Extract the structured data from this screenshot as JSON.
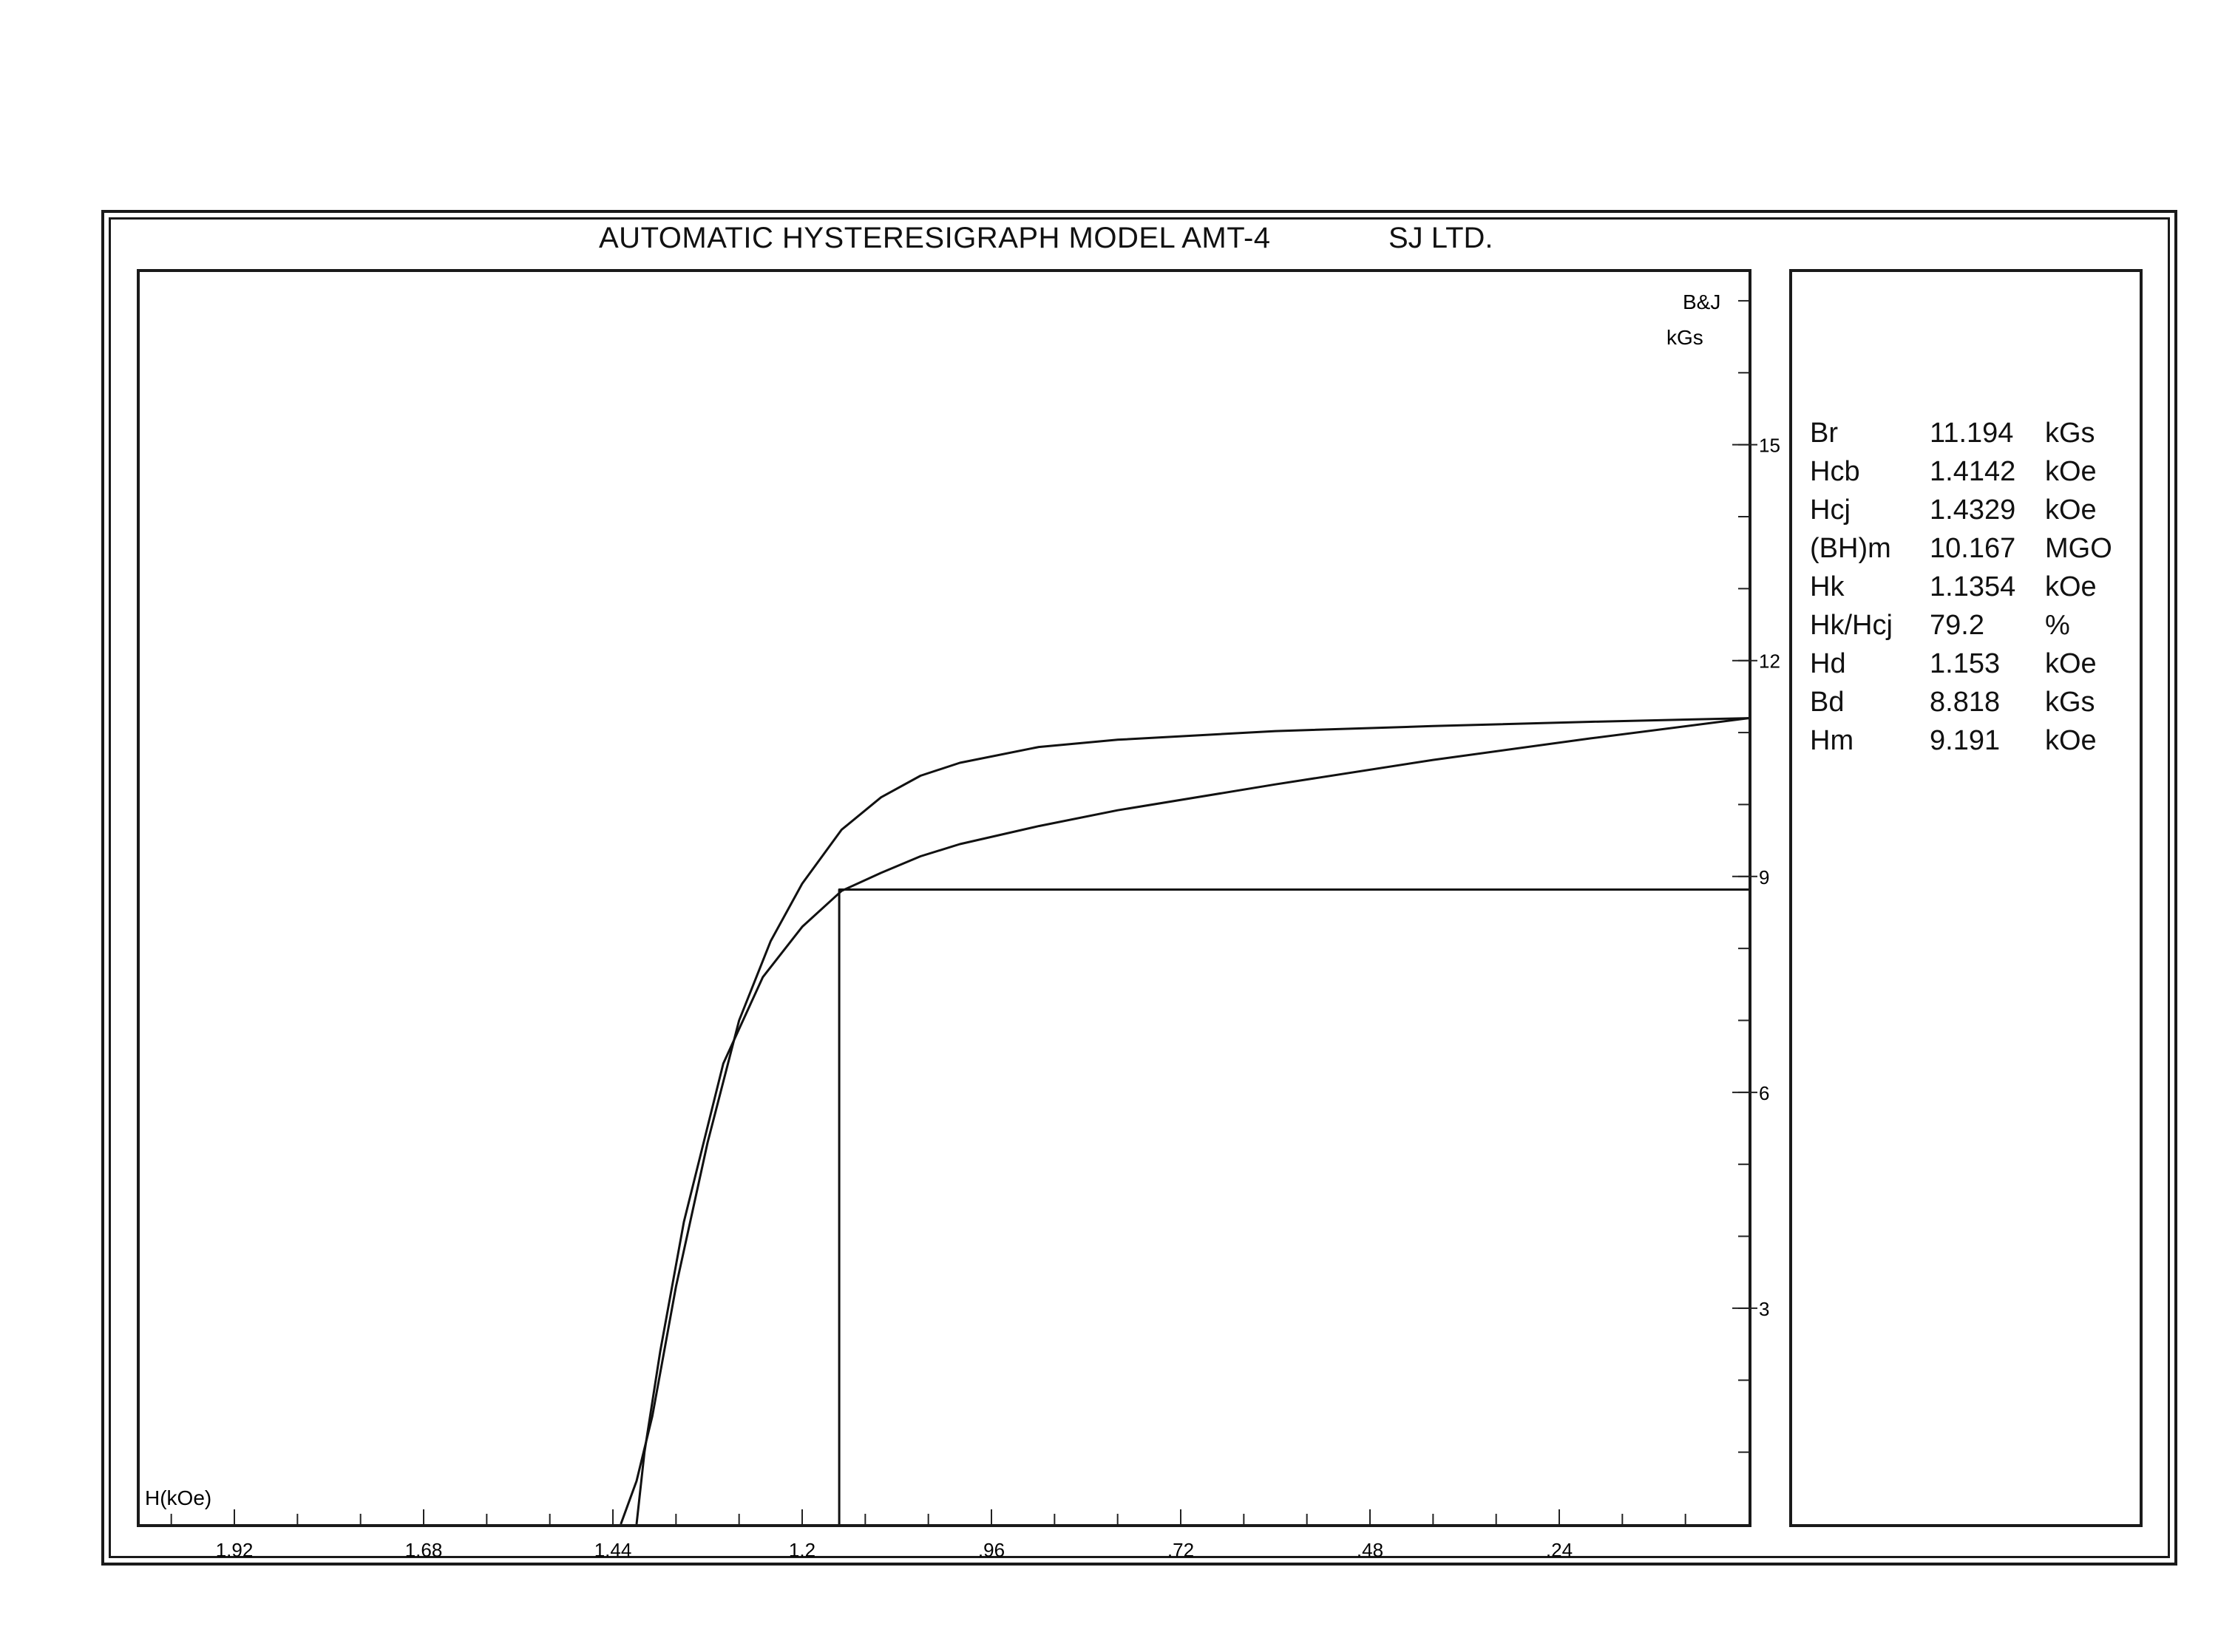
{
  "header": {
    "title": "AUTOMATIC HYSTERESIGRAPH MODEL AMT-4",
    "company": "SJ LTD."
  },
  "results": [
    {
      "name": "Br",
      "value": "11.194",
      "unit": "kGs"
    },
    {
      "name": "Hcb",
      "value": "1.4142",
      "unit": "kOe"
    },
    {
      "name": "Hcj",
      "value": "1.4329",
      "unit": "kOe"
    },
    {
      "name": "(BH)m",
      "value": "10.167",
      "unit": "MGO"
    },
    {
      "name": "Hk",
      "value": "1.1354",
      "unit": "kOe"
    },
    {
      "name": "Hk/Hcj",
      "value": "79.2",
      "unit": "%"
    },
    {
      "name": "Hd",
      "value": "1.153",
      "unit": "kOe"
    },
    {
      "name": "Bd",
      "value": "8.818",
      "unit": "kGs"
    },
    {
      "name": "Hm",
      "value": "9.191",
      "unit": "kOe"
    }
  ],
  "chart_data": {
    "type": "line",
    "title": "AUTOMATIC HYSTERESIGRAPH MODEL AMT-4",
    "xlabel": "H(kOe)",
    "ylabel": "B&J kGs",
    "x_reversed": true,
    "xlim": [
      0,
      2.04
    ],
    "ylim": [
      0,
      17.4
    ],
    "x_ticks": [
      1.92,
      1.68,
      1.44,
      1.2,
      0.96,
      0.72,
      0.48,
      0.24
    ],
    "x_tick_labels": [
      "1.92",
      "1.68",
      "1.44",
      "1.2",
      ".96",
      ".72",
      ".48",
      ".24"
    ],
    "x_minor_step": 0.08,
    "y_ticks": [
      3,
      6,
      9,
      12,
      15
    ],
    "y_tick_labels": [
      "3",
      "6",
      "9",
      "12",
      "15"
    ],
    "y_minor_step": 1,
    "grid": false,
    "series": [
      {
        "x": [
          0,
          0.2,
          0.4,
          0.6,
          0.8,
          0.9,
          1.0,
          1.05,
          1.1,
          1.15,
          1.2,
          1.24,
          1.28,
          1.32,
          1.36,
          1.39,
          1.41,
          1.43
        ],
        "y": [
          11.2,
          11.15,
          11.09,
          11.02,
          10.9,
          10.8,
          10.58,
          10.4,
          10.1,
          9.65,
          8.9,
          8.1,
          7.0,
          5.3,
          3.3,
          1.5,
          0.6,
          0
        ]
      },
      {
        "x": [
          0,
          0.2,
          0.4,
          0.6,
          0.8,
          0.9,
          1.0,
          1.05,
          1.1,
          1.15,
          1.2,
          1.25,
          1.3,
          1.35,
          1.38,
          1.4,
          1.41
        ],
        "y": [
          11.2,
          10.92,
          10.62,
          10.28,
          9.92,
          9.7,
          9.45,
          9.28,
          9.05,
          8.8,
          8.3,
          7.6,
          6.4,
          4.2,
          2.4,
          1.0,
          0
        ]
      },
      {
        "x": [
          1.153,
          1.153,
          0
        ],
        "y": [
          0,
          8.818,
          8.818
        ]
      }
    ]
  }
}
